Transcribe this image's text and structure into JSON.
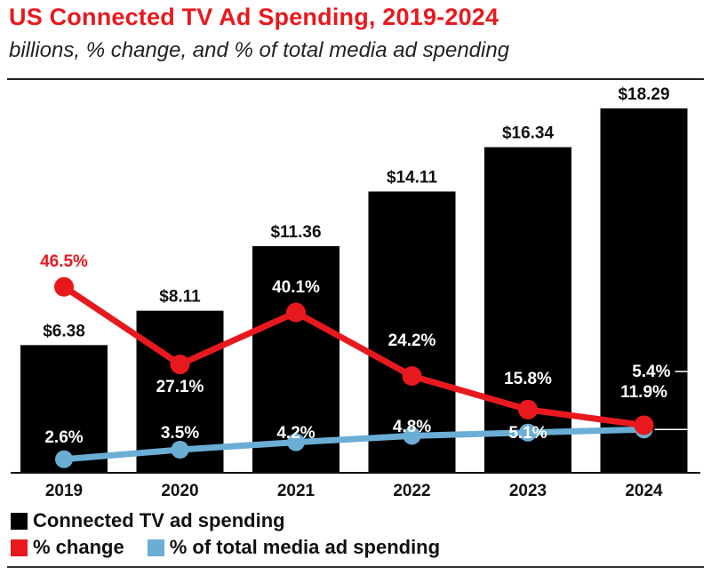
{
  "header": {
    "title": "US Connected TV Ad Spending, 2019-2024",
    "subtitle": "billions, % change, and % of total media ad spending"
  },
  "colors": {
    "bars": "#000000",
    "change_line": "#e8191e",
    "share_line": "#6aaed6"
  },
  "chart_data": {
    "type": "bar",
    "categories": [
      "2019",
      "2020",
      "2021",
      "2022",
      "2023",
      "2024"
    ],
    "series": [
      {
        "name": "Connected TV ad spending",
        "type": "bar",
        "values": [
          6.38,
          8.11,
          11.36,
          14.11,
          16.34,
          18.29
        ],
        "labels": [
          "$6.38",
          "$8.11",
          "$11.36",
          "$14.11",
          "$16.34",
          "$18.29"
        ]
      },
      {
        "name": "% change",
        "type": "line",
        "values": [
          46.5,
          27.1,
          40.1,
          24.2,
          15.8,
          11.9
        ],
        "labels": [
          "46.5%",
          "27.1%",
          "40.1%",
          "24.2%",
          "15.8%",
          "11.9%"
        ]
      },
      {
        "name": "% of total media ad spending",
        "type": "line",
        "values": [
          2.6,
          3.5,
          4.2,
          4.8,
          5.1,
          5.4
        ],
        "labels": [
          "2.6%",
          "3.5%",
          "4.2%",
          "4.8%",
          "5.1%",
          "5.4%"
        ]
      }
    ],
    "title": "US Connected TV Ad Spending, 2019-2024",
    "subtitle": "billions, % change, and % of total media ad spending",
    "grid": false,
    "legend_position": "bottom-left"
  },
  "legend": {
    "items": [
      "Connected TV ad spending",
      "% change",
      "% of total media ad spending"
    ]
  }
}
